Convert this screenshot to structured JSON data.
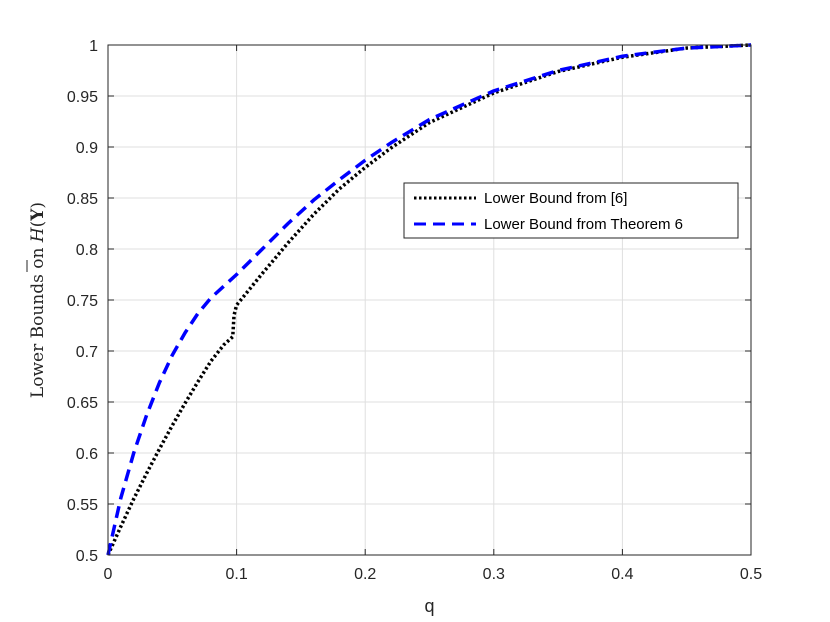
{
  "chart_data": {
    "type": "line",
    "title": "",
    "xlabel": "q",
    "ylabel": {
      "text": "Lower Bounds on ",
      "symbol": "H",
      "paren_open": "(",
      "arg": "Y",
      "paren_close": ")"
    },
    "xlim": [
      0,
      0.5
    ],
    "ylim": [
      0.5,
      1
    ],
    "xticks": [
      0,
      0.1,
      0.2,
      0.3,
      0.4,
      0.5
    ],
    "xtick_labels": [
      "0",
      "0.1",
      "0.2",
      "0.3",
      "0.4",
      "0.5"
    ],
    "yticks": [
      0.5,
      0.55,
      0.6,
      0.65,
      0.7,
      0.75,
      0.8,
      0.85,
      0.9,
      0.95,
      1
    ],
    "ytick_labels": [
      "0.5",
      "0.55",
      "0.6",
      "0.65",
      "0.7",
      "0.75",
      "0.8",
      "0.85",
      "0.9",
      "0.95",
      "1"
    ],
    "grid": true,
    "legend_position": "top-right",
    "series": [
      {
        "name": "Lower Bound from [6]",
        "color": "#000000",
        "style": "dotted",
        "points": [
          [
            0,
            0.5
          ],
          [
            0.01,
            0.528
          ],
          [
            0.02,
            0.555
          ],
          [
            0.03,
            0.58
          ],
          [
            0.04,
            0.604
          ],
          [
            0.05,
            0.627
          ],
          [
            0.06,
            0.649
          ],
          [
            0.07,
            0.67
          ],
          [
            0.08,
            0.69
          ],
          [
            0.09,
            0.706
          ],
          [
            0.097,
            0.714
          ],
          [
            0.098,
            0.735
          ],
          [
            0.1,
            0.745
          ],
          [
            0.12,
            0.776
          ],
          [
            0.14,
            0.806
          ],
          [
            0.16,
            0.834
          ],
          [
            0.18,
            0.859
          ],
          [
            0.2,
            0.88
          ],
          [
            0.22,
            0.899
          ],
          [
            0.25,
            0.924
          ],
          [
            0.3,
            0.953
          ],
          [
            0.35,
            0.974
          ],
          [
            0.4,
            0.988
          ],
          [
            0.45,
            0.997
          ],
          [
            0.5,
            1.0
          ]
        ]
      },
      {
        "name": "Lower Bound from Theorem 6",
        "color": "#0000ff",
        "style": "dashed",
        "points": [
          [
            0,
            0.5
          ],
          [
            0.01,
            0.556
          ],
          [
            0.02,
            0.6
          ],
          [
            0.03,
            0.637
          ],
          [
            0.04,
            0.669
          ],
          [
            0.05,
            0.696
          ],
          [
            0.06,
            0.718
          ],
          [
            0.07,
            0.737
          ],
          [
            0.08,
            0.752
          ],
          [
            0.1,
            0.775
          ],
          [
            0.12,
            0.8
          ],
          [
            0.14,
            0.825
          ],
          [
            0.16,
            0.848
          ],
          [
            0.18,
            0.868
          ],
          [
            0.2,
            0.887
          ],
          [
            0.22,
            0.904
          ],
          [
            0.25,
            0.927
          ],
          [
            0.3,
            0.955
          ],
          [
            0.35,
            0.975
          ],
          [
            0.4,
            0.989
          ],
          [
            0.45,
            0.997
          ],
          [
            0.5,
            1.0
          ]
        ]
      }
    ]
  }
}
